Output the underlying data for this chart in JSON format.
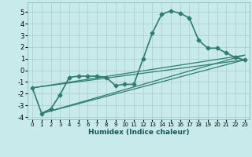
{
  "xlabel": "Humidex (Indice chaleur)",
  "background_color": "#c8eaea",
  "grid_color": "#b0d0d0",
  "line_color": "#2e7d6e",
  "xlim": [
    -0.5,
    23.5
  ],
  "ylim": [
    -4.2,
    5.8
  ],
  "x_ticks": [
    0,
    1,
    2,
    3,
    4,
    5,
    6,
    7,
    8,
    9,
    10,
    11,
    12,
    13,
    14,
    15,
    16,
    17,
    18,
    19,
    20,
    21,
    22,
    23
  ],
  "y_ticks": [
    -4,
    -3,
    -2,
    -1,
    0,
    1,
    2,
    3,
    4,
    5
  ],
  "main_x": [
    0,
    1,
    2,
    3,
    4,
    5,
    6,
    7,
    8,
    9,
    10,
    11,
    12,
    13,
    14,
    15,
    16,
    17,
    18,
    19,
    20,
    21,
    22,
    23
  ],
  "main_y": [
    -1.5,
    -3.7,
    -3.3,
    -2.1,
    -0.6,
    -0.5,
    -0.5,
    -0.5,
    -0.6,
    -1.3,
    -1.2,
    -1.2,
    1.0,
    3.2,
    4.8,
    5.1,
    4.9,
    4.5,
    2.6,
    1.9,
    1.9,
    1.5,
    1.1,
    0.9
  ],
  "straight_lines": [
    {
      "x": [
        0,
        23
      ],
      "y": [
        -1.5,
        0.9
      ]
    },
    {
      "x": [
        0,
        23
      ],
      "y": [
        -1.5,
        1.3
      ]
    },
    {
      "x": [
        1,
        23
      ],
      "y": [
        -3.7,
        0.9
      ]
    },
    {
      "x": [
        1,
        23
      ],
      "y": [
        -3.7,
        1.3
      ]
    }
  ]
}
